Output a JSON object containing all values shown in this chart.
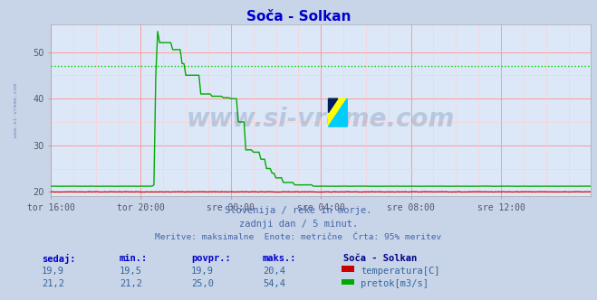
{
  "title": "Soča - Solkan",
  "title_color": "#0000cc",
  "bg_color": "#c8d4e8",
  "plot_bg_color": "#dce8f8",
  "grid_color_major": "#ff9999",
  "grid_color_minor": "#ffcccc",
  "tick_label_color": "#555566",
  "ylim_min": 19.0,
  "ylim_max": 56.0,
  "watermark": "www.si-vreme.com",
  "watermark_color": "#1a3a6a",
  "watermark_alpha": 0.18,
  "subtitle1": "Slovenija / reke in morje.",
  "subtitle2": "zadnji dan / 5 minut.",
  "subtitle3": "Meritve: maksimalne  Enote: metrične  Črta: 95% meritev",
  "subtitle_color": "#4466aa",
  "footer_label_color": "#0000cc",
  "footer_value_color": "#336699",
  "footer_title_color": "#000088",
  "temp_color": "#cc0000",
  "flow_color": "#00aa00",
  "temp_95pct_value": 20.0,
  "flow_95pct_value": 47.0,
  "temp_dotted_color": "#ff5555",
  "flow_dotted_color": "#00cc00",
  "left_label_color": "#4466aa",
  "temp_vals": [
    "19,9",
    "19,5",
    "19,9",
    "20,4"
  ],
  "flow_vals": [
    "21,2",
    "21,2",
    "25,0",
    "54,4"
  ],
  "col_headers": [
    "sedaj:",
    "min.:",
    "povpr.:",
    "maks.:"
  ],
  "station_name": "Soča - Solkan",
  "legend_temp": "temperatura[C]",
  "legend_flow": "pretok[m3/s]",
  "x_tick_labels": [
    "tor 16:00",
    "tor 20:00",
    "sre 00:00",
    "sre 04:00",
    "sre 08:00",
    "sre 12:00"
  ]
}
